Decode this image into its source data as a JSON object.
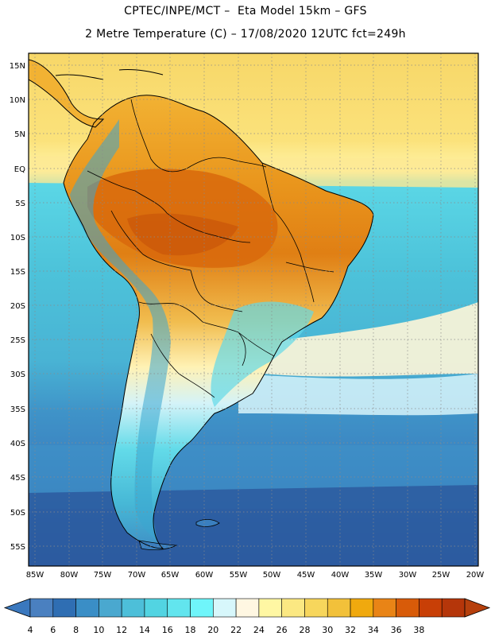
{
  "header": {
    "line1": "CPTEC/INPE/MCT –  Eta Model 15km – GFS",
    "line2": "2 Metre Temperature (C) – 17/08/2020 12UTC fct=249h"
  },
  "map": {
    "lon_range": [
      -86,
      -20
    ],
    "lat_range": [
      -58,
      17
    ],
    "lat_labels": [
      "15N",
      "10N",
      "5N",
      "EQ",
      "5S",
      "10S",
      "15S",
      "20S",
      "25S",
      "30S",
      "35S",
      "40S",
      "45S",
      "50S",
      "55S"
    ],
    "lon_labels": [
      "85W",
      "80W",
      "75W",
      "70W",
      "65W",
      "60W",
      "55W",
      "50W",
      "45W",
      "40W",
      "35W",
      "30W",
      "25W",
      "20W"
    ]
  },
  "colorbar": {
    "labels": [
      "4",
      "6",
      "8",
      "10",
      "12",
      "14",
      "16",
      "18",
      "20",
      "22",
      "24",
      "26",
      "28",
      "30",
      "32",
      "34",
      "36",
      "38"
    ],
    "colors": [
      "#4a80c0",
      "#2f6eb3",
      "#3a8ec6",
      "#4aa8cf",
      "#4dbfd9",
      "#52d4e2",
      "#62e5ee",
      "#6ff5fa",
      "#d7f7fb",
      "#fff7e2",
      "#fff7a3",
      "#fbe882",
      "#f7d65c",
      "#f2c13a",
      "#f0a90e",
      "#e98416",
      "#d85b09",
      "#c83f06",
      "#b5360a"
    ],
    "low_color": "#3a78be",
    "high_color": "#b6400d"
  }
}
